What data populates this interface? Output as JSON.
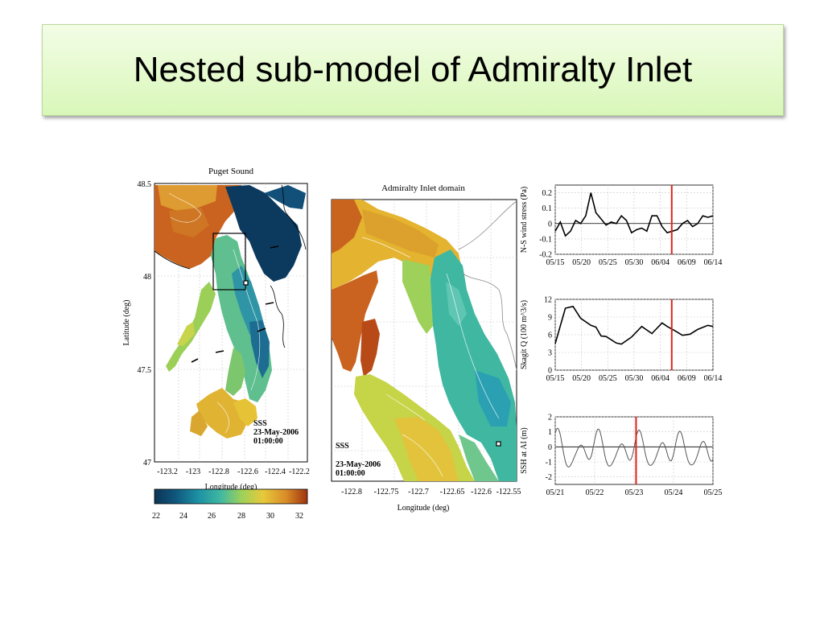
{
  "slide": {
    "title": "Nested sub-model of Admiralty Inlet"
  },
  "map_puget": {
    "title": "Puget Sound",
    "xlabel": "Longitude (deg)",
    "ylabel": "Latitude (deg)",
    "yticks": [
      "48.5",
      "48",
      "47.5",
      "47"
    ],
    "xticks": [
      "-123.2",
      "-123",
      "-122.8",
      "-122.6",
      "-122.4",
      "-122.2"
    ],
    "annotation": [
      "SSS",
      "23-May-2006",
      "01:00:00"
    ]
  },
  "map_admiralty": {
    "title": "Admiralty Inlet domain",
    "xlabel": "Longitude (deg)",
    "xticks": [
      "-122.8",
      "-122.75",
      "-122.7",
      "-122.65",
      "-122.6",
      "-122.55"
    ],
    "annotation": [
      "SSS",
      "23-May-2006",
      "01:00:00"
    ]
  },
  "colorbar": {
    "ticks": [
      "22",
      "24",
      "26",
      "28",
      "30",
      "32"
    ],
    "colors": [
      "#0b3556",
      "#10577e",
      "#1c8fa3",
      "#3fb7a1",
      "#9dd15a",
      "#e7c93a",
      "#d98c27",
      "#a0330f"
    ]
  },
  "chart_data": [
    {
      "type": "line",
      "ylabel": "N-S wind stress (Pa)",
      "yticks": [
        "0.2",
        "0.1",
        "0",
        "-0.1",
        "-0.2"
      ],
      "ylim": [
        -0.2,
        0.25
      ],
      "xticks": [
        "05/15",
        "05/20",
        "05/25",
        "05/30",
        "06/04",
        "06/09",
        "06/14"
      ],
      "marker_x": 22.9,
      "x": [
        0,
        1,
        2,
        3,
        4,
        5,
        6,
        7,
        8,
        9,
        10,
        11,
        12,
        13,
        14,
        15,
        16,
        17,
        18,
        19,
        20,
        21,
        22,
        23,
        24,
        25,
        26,
        27,
        28,
        29,
        30,
        31
      ],
      "values": [
        -0.05,
        0.01,
        -0.08,
        -0.05,
        0.02,
        0.0,
        0.05,
        0.2,
        0.07,
        0.03,
        -0.01,
        0.01,
        0.0,
        0.05,
        0.02,
        -0.06,
        -0.04,
        -0.03,
        -0.05,
        0.05,
        0.05,
        -0.02,
        -0.06,
        -0.05,
        -0.04,
        0.0,
        0.02,
        -0.02,
        0.0,
        0.05,
        0.04,
        0.05
      ],
      "x_start": 0,
      "x_end": 31
    },
    {
      "type": "line",
      "ylabel": "Skagit Q (100 m^3/s)",
      "yticks": [
        "12",
        "9",
        "6",
        "3",
        "0"
      ],
      "ylim": [
        0,
        12
      ],
      "xticks": [
        "05/15",
        "05/20",
        "05/25",
        "05/30",
        "06/04",
        "06/09",
        "06/14"
      ],
      "marker_x": 22.9,
      "x": [
        0,
        2,
        3.5,
        5,
        7,
        8,
        9,
        10,
        12,
        13,
        15,
        17,
        19,
        21,
        22,
        23.5,
        25,
        26.5,
        28,
        30,
        31
      ],
      "values": [
        4.5,
        10.5,
        10.8,
        8.8,
        7.6,
        7.3,
        5.8,
        5.7,
        4.6,
        4.4,
        5.6,
        7.4,
        6.2,
        8.0,
        7.4,
        6.7,
        5.9,
        6.1,
        6.9,
        7.6,
        7.4
      ]
    },
    {
      "type": "line",
      "ylabel": "SSH at AI (m)",
      "yticks": [
        "2",
        "1",
        "0",
        "-1",
        "-2"
      ],
      "ylim": [
        -2.5,
        2
      ],
      "xticks": [
        "05/21",
        "05/22",
        "05/23",
        "05/24",
        "05/25"
      ],
      "marker_x": 2.05
    }
  ]
}
